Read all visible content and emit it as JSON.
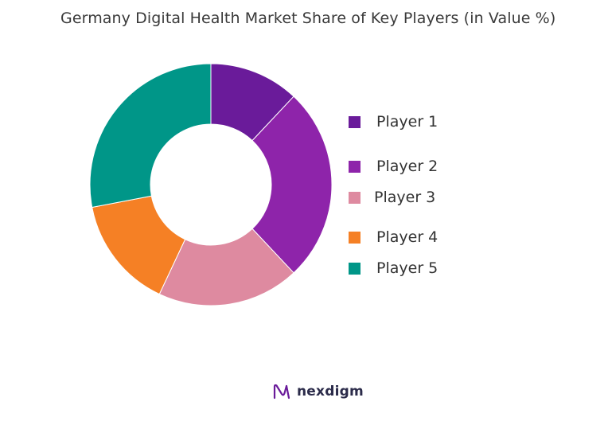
{
  "chart_data": {
    "type": "pie",
    "title": "Germany Digital Health Market Share of Key Players (in Value %)",
    "categories": [
      "Player 1",
      "Player 2",
      "Player 3",
      "Player 4",
      "Player 5"
    ],
    "values": [
      12,
      26,
      19,
      15,
      28
    ],
    "colors": [
      "#6a1b9a",
      "#8e24aa",
      "#de8aa0",
      "#f58025",
      "#009688"
    ],
    "donut": true,
    "legend_position": "right"
  },
  "legend": [
    {
      "label": "Player 1",
      "color": "#6a1b9a"
    },
    {
      "label": "Player 2",
      "color": "#8e24aa"
    },
    {
      "label": "Player 3",
      "color": "#de8aa0"
    },
    {
      "label": "Player 4",
      "color": "#f58025"
    },
    {
      "label": "Player 5",
      "color": "#009688"
    }
  ],
  "brand": {
    "name": "nexdigm",
    "icon": "nexdigm-logo-icon",
    "color": "#6a1b9a"
  }
}
